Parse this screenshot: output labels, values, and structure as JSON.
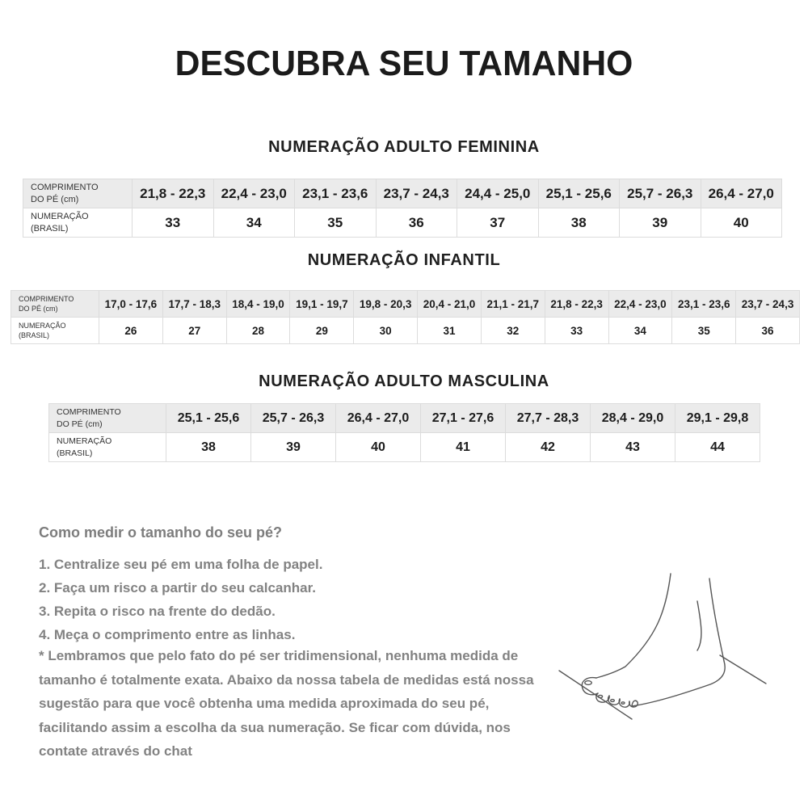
{
  "page": {
    "title": "DESCUBRA SEU TAMANHO"
  },
  "colors": {
    "table_header_row_bg": "#ebebeb",
    "table_border": "#dcdcdc",
    "table_text": "#1c1c1c",
    "muted_text": "#828282",
    "background": "#ffffff"
  },
  "tables": [
    {
      "title": "NUMERAÇÃO ADULTO FEMININA",
      "foot_length_label": "COMPRIMENTO\nDO PÉ (cm)",
      "size_label": "NUMERAÇÃO\n(BRASIL)",
      "ranges": [
        "21,8 - 22,3",
        "22,4 - 23,0",
        "23,1 - 23,6",
        "23,7 - 24,3",
        "24,4 - 25,0",
        "25,1 - 25,6",
        "25,7 - 26,3",
        "26,4 - 27,0"
      ],
      "sizes": [
        "33",
        "34",
        "35",
        "36",
        "37",
        "38",
        "39",
        "40"
      ]
    },
    {
      "title": "NUMERAÇÃO INFANTIL",
      "foot_length_label": "COMPRIMENTO\nDO PÉ (cm)",
      "size_label": "NUMERAÇÃO\n(BRASIL)",
      "ranges": [
        "17,0 - 17,6",
        "17,7 - 18,3",
        "18,4 - 19,0",
        "19,1 - 19,7",
        "19,8 - 20,3",
        "20,4 - 21,0",
        "21,1 - 21,7",
        "21,8 - 22,3",
        "22,4 - 23,0",
        "23,1 - 23,6",
        "23,7 - 24,3"
      ],
      "sizes": [
        "26",
        "27",
        "28",
        "29",
        "30",
        "31",
        "32",
        "33",
        "34",
        "35",
        "36"
      ]
    },
    {
      "title": "NUMERAÇÃO ADULTO MASCULINA",
      "foot_length_label": "COMPRIMENTO\nDO PÉ (cm)",
      "size_label": "NUMERAÇÃO\n(BRASIL)",
      "ranges": [
        "25,1 - 25,6",
        "25,7 - 26,3",
        "26,4 - 27,0",
        "27,1 - 27,6",
        "27,7 - 28,3",
        "28,4 - 29,0",
        "29,1 - 29,8"
      ],
      "sizes": [
        "38",
        "39",
        "40",
        "41",
        "42",
        "43",
        "44"
      ]
    }
  ],
  "instructions": {
    "heading": "Como medir o tamanho do seu pé?",
    "steps": [
      "1. Centralize seu pé em uma folha de papel.",
      "2. Faça um risco a partir do seu calcanhar.",
      "3. Repita o risco na frente do dedão.",
      "4. Meça o comprimento entre as linhas."
    ],
    "note": "* Lembramos que pelo fato do pé ser tridimensional, nenhuma medida de tamanho é totalmente exata. Abaixo da nossa tabela de medidas está nossa sugestão para que você obtenha uma medida aproximada do seu pé, facilitando assim a escolha da sua numeração. Se ficar com dúvida, nos contate através do chat"
  }
}
